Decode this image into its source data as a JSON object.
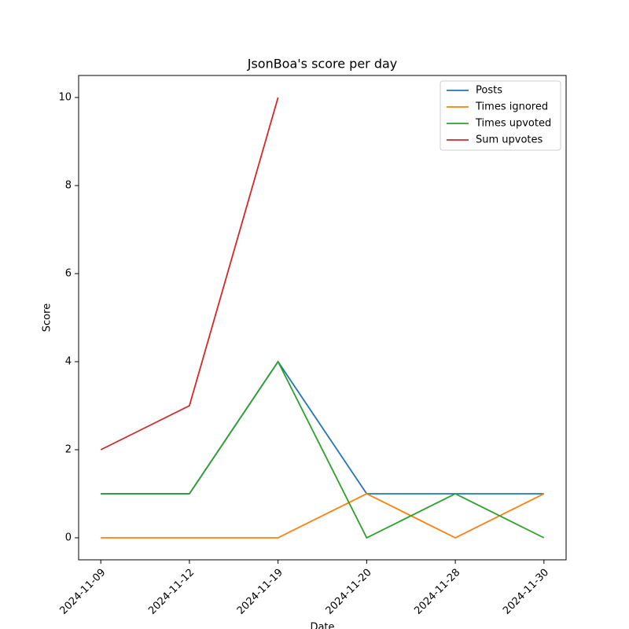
{
  "chart_data": {
    "type": "line",
    "title": "JsonBoa's score per day",
    "xlabel": "Date",
    "ylabel": "Score",
    "categories": [
      "2024-11-09",
      "2024-11-12",
      "2024-11-19",
      "2024-11-20",
      "2024-11-28",
      "2024-11-30"
    ],
    "series": [
      {
        "name": "Posts",
        "color": "#1f77b4",
        "values": [
          1,
          1,
          4,
          1,
          1,
          1
        ]
      },
      {
        "name": "Times ignored",
        "color": "#ff7f0e",
        "values": [
          0,
          0,
          0,
          1,
          0,
          1
        ]
      },
      {
        "name": "Times upvoted",
        "color": "#2ca02c",
        "values": [
          1,
          1,
          4,
          0,
          1,
          0
        ]
      },
      {
        "name": "Sum upvotes",
        "color": "#d62728",
        "values": [
          2,
          3,
          10,
          null,
          null,
          null
        ]
      }
    ],
    "ylim": [
      -0.5,
      10.5
    ],
    "yticks": [
      0,
      2,
      4,
      6,
      8,
      10
    ],
    "legend": "upper right",
    "grid": false
  }
}
